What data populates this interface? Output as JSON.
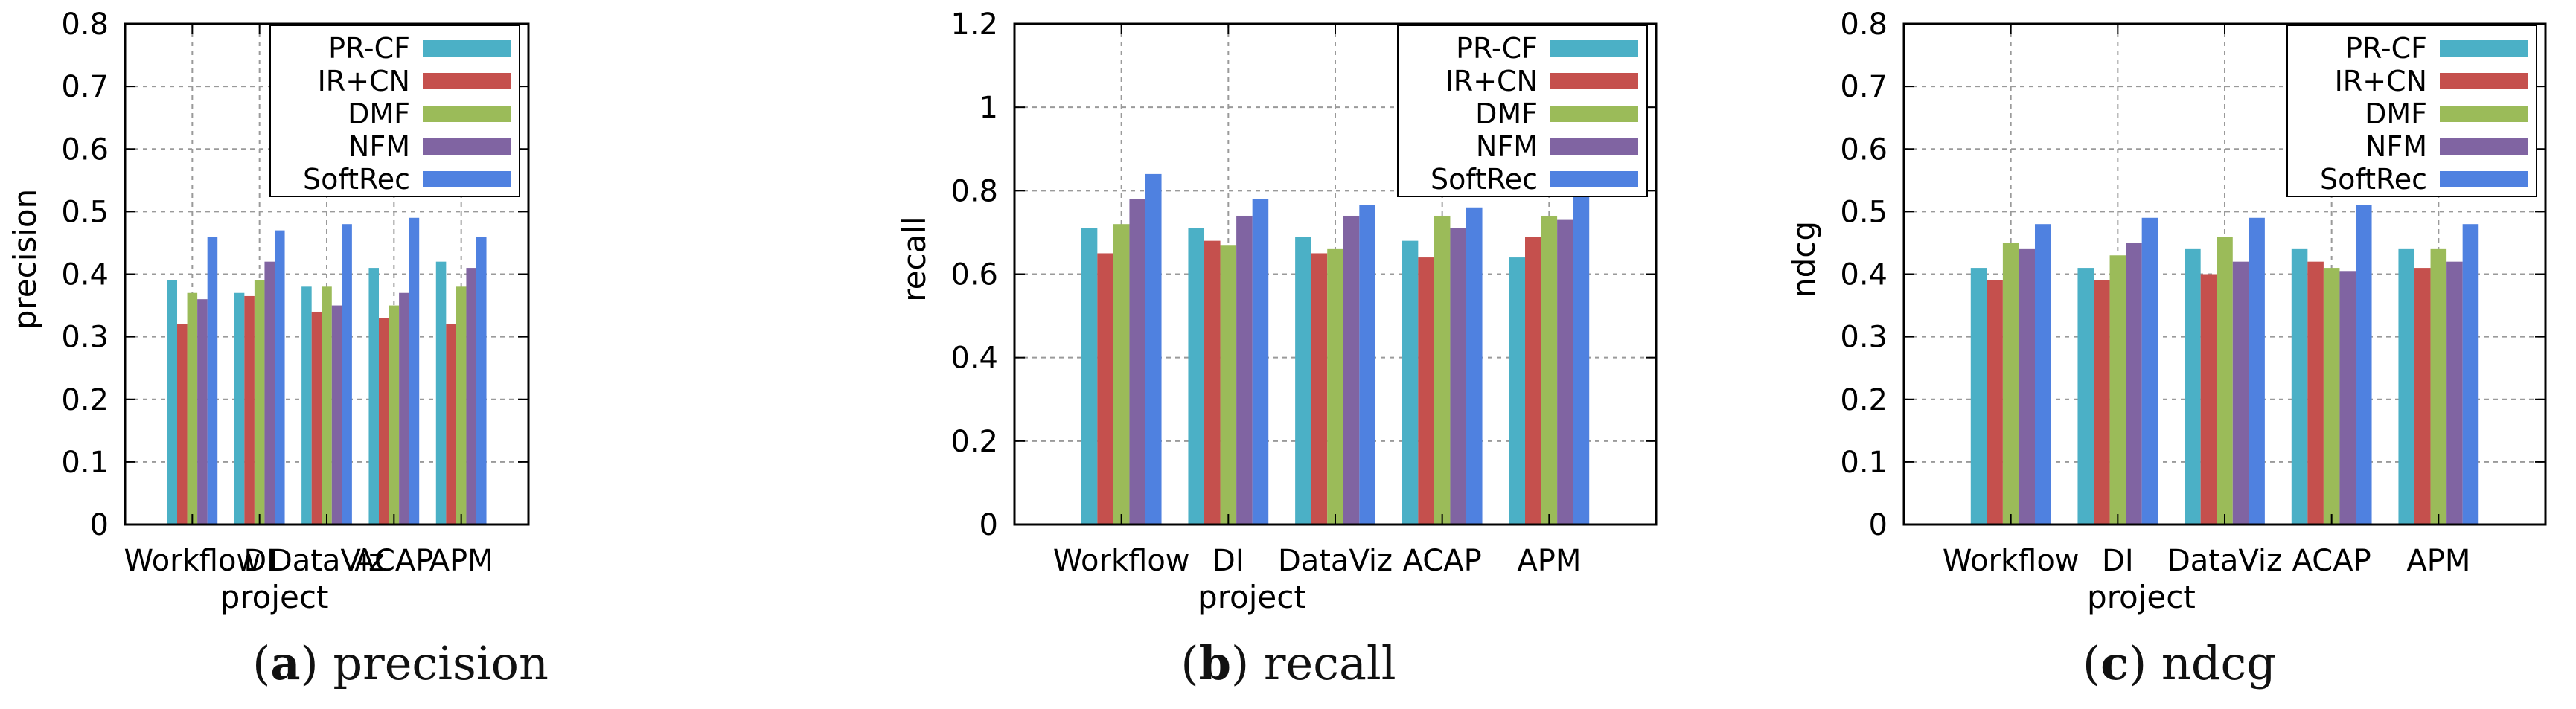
{
  "figure": {
    "captions": [
      {
        "label": "a",
        "text": "precision"
      },
      {
        "label": "b",
        "text": "recall"
      },
      {
        "label": "c",
        "text": "ndcg"
      }
    ]
  },
  "legend": [
    {
      "name": "PR-CF",
      "color": "#4bb0c6"
    },
    {
      "name": "IR+CN",
      "color": "#c5504d"
    },
    {
      "name": "DMF",
      "color": "#9bbb59"
    },
    {
      "name": "NFM",
      "color": "#8064a2"
    },
    {
      "name": "SoftRec",
      "color": "#4f81e0"
    }
  ],
  "chart_data": [
    {
      "type": "bar",
      "title": "",
      "xlabel": "project",
      "ylabel": "precision",
      "categories": [
        "Workflow",
        "DI",
        "DataViz",
        "ACAP",
        "APM"
      ],
      "ylim": [
        0,
        0.8
      ],
      "yticks": [
        "0",
        "0.1",
        "0.2",
        "0.3",
        "0.4",
        "0.5",
        "0.6",
        "0.7",
        "0.8"
      ],
      "grid": true,
      "legend_position": "top-right",
      "series": [
        {
          "name": "PR-CF",
          "values": [
            0.39,
            0.37,
            0.38,
            0.41,
            0.42
          ]
        },
        {
          "name": "IR+CN",
          "values": [
            0.32,
            0.365,
            0.34,
            0.33,
            0.32
          ]
        },
        {
          "name": "DMF",
          "values": [
            0.37,
            0.39,
            0.38,
            0.35,
            0.38
          ]
        },
        {
          "name": "NFM",
          "values": [
            0.36,
            0.42,
            0.35,
            0.37,
            0.41
          ]
        },
        {
          "name": "SoftRec",
          "values": [
            0.46,
            0.47,
            0.48,
            0.49,
            0.46
          ]
        }
      ]
    },
    {
      "type": "bar",
      "title": "",
      "xlabel": "project",
      "ylabel": "recall",
      "categories": [
        "Workflow",
        "DI",
        "DataViz",
        "ACAP",
        "APM"
      ],
      "ylim": [
        0,
        1.2
      ],
      "yticks": [
        "0",
        "0.2",
        "0.4",
        "0.6",
        "0.8",
        "1",
        "1.2"
      ],
      "grid": true,
      "legend_position": "top-right",
      "series": [
        {
          "name": "PR-CF",
          "values": [
            0.71,
            0.71,
            0.69,
            0.68,
            0.64
          ]
        },
        {
          "name": "IR+CN",
          "values": [
            0.65,
            0.68,
            0.65,
            0.64,
            0.69
          ]
        },
        {
          "name": "DMF",
          "values": [
            0.72,
            0.67,
            0.66,
            0.74,
            0.74
          ]
        },
        {
          "name": "NFM",
          "values": [
            0.78,
            0.74,
            0.74,
            0.71,
            0.73
          ]
        },
        {
          "name": "SoftRec",
          "values": [
            0.84,
            0.78,
            0.765,
            0.76,
            0.79
          ]
        }
      ]
    },
    {
      "type": "bar",
      "title": "",
      "xlabel": "project",
      "ylabel": "ndcg",
      "categories": [
        "Workflow",
        "DI",
        "DataViz",
        "ACAP",
        "APM"
      ],
      "ylim": [
        0,
        0.8
      ],
      "yticks": [
        "0",
        "0.1",
        "0.2",
        "0.3",
        "0.4",
        "0.5",
        "0.6",
        "0.7",
        "0.8"
      ],
      "grid": true,
      "legend_position": "top-right",
      "series": [
        {
          "name": "PR-CF",
          "values": [
            0.41,
            0.41,
            0.44,
            0.44,
            0.44
          ]
        },
        {
          "name": "IR+CN",
          "values": [
            0.39,
            0.39,
            0.4,
            0.42,
            0.41
          ]
        },
        {
          "name": "DMF",
          "values": [
            0.45,
            0.43,
            0.46,
            0.41,
            0.44
          ]
        },
        {
          "name": "NFM",
          "values": [
            0.44,
            0.45,
            0.42,
            0.405,
            0.42
          ]
        },
        {
          "name": "SoftRec",
          "values": [
            0.48,
            0.49,
            0.49,
            0.51,
            0.48
          ]
        }
      ]
    }
  ]
}
